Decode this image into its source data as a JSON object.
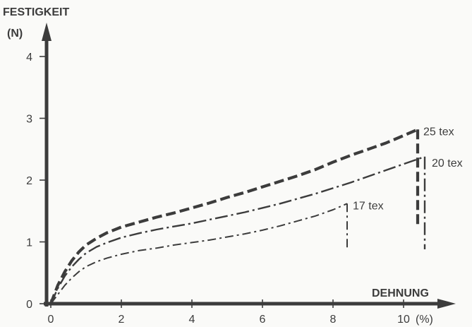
{
  "chart_data": {
    "type": "line",
    "ylabel_line1": "FESTIGKEIT",
    "ylabel_line2": "(N)",
    "xlabel": "DEHNUNG",
    "x_unit": "(%)",
    "xlim": [
      0,
      11
    ],
    "ylim": [
      0,
      4.5
    ],
    "x_ticks": [
      0,
      2,
      4,
      6,
      8,
      10
    ],
    "y_ticks": [
      0,
      1,
      2,
      3,
      4
    ],
    "grid": false,
    "series": [
      {
        "name": "25 tex",
        "style": "dashed-heavy",
        "x": [
          0,
          0.2,
          0.4,
          0.6,
          0.8,
          1,
          1.3,
          1.6,
          2,
          2.5,
          3,
          3.5,
          4,
          4.5,
          5,
          5.5,
          6,
          6.5,
          7,
          7.5,
          8,
          8.5,
          9,
          9.5,
          10,
          10.4
        ],
        "y": [
          0,
          0.3,
          0.52,
          0.7,
          0.84,
          0.95,
          1.06,
          1.15,
          1.24,
          1.32,
          1.4,
          1.47,
          1.55,
          1.63,
          1.72,
          1.8,
          1.89,
          1.98,
          2.07,
          2.17,
          2.29,
          2.4,
          2.5,
          2.6,
          2.72,
          2.82
        ],
        "drop_to": 1.25
      },
      {
        "name": "20 tex",
        "style": "dash-dot",
        "x": [
          0,
          0.2,
          0.4,
          0.6,
          0.8,
          1,
          1.3,
          1.6,
          2,
          2.5,
          3,
          3.5,
          4,
          4.5,
          5,
          5.5,
          6,
          6.5,
          7,
          7.5,
          8,
          8.5,
          9,
          9.5,
          10,
          10.6
        ],
        "y": [
          0,
          0.25,
          0.45,
          0.6,
          0.72,
          0.82,
          0.92,
          0.99,
          1.07,
          1.14,
          1.2,
          1.25,
          1.3,
          1.36,
          1.42,
          1.48,
          1.55,
          1.62,
          1.7,
          1.78,
          1.87,
          1.96,
          2.06,
          2.16,
          2.26,
          2.38
        ],
        "drop_to": 0.88
      },
      {
        "name": "17 tex",
        "style": "dash-dot-fine",
        "x": [
          0,
          0.2,
          0.4,
          0.6,
          0.8,
          1,
          1.3,
          1.6,
          2,
          2.5,
          3,
          3.5,
          4,
          4.5,
          5,
          5.5,
          6,
          6.5,
          7,
          7.5,
          8,
          8.4
        ],
        "y": [
          0,
          0.15,
          0.3,
          0.42,
          0.52,
          0.6,
          0.68,
          0.74,
          0.8,
          0.86,
          0.9,
          0.95,
          0.99,
          1.03,
          1.08,
          1.13,
          1.19,
          1.26,
          1.34,
          1.42,
          1.52,
          1.62
        ],
        "drop_to": 0.88
      }
    ]
  }
}
